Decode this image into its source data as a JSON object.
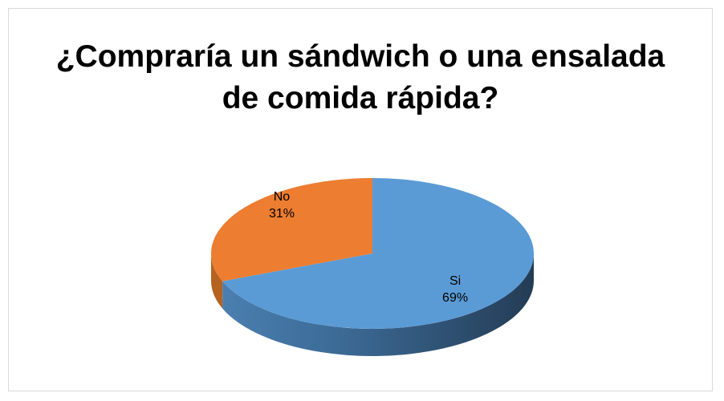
{
  "chart_data": {
    "type": "pie",
    "title_lines": [
      "¿Compraría un sándwich o una ensalada",
      "de comida rápida?"
    ],
    "categories": [
      "Si",
      "No"
    ],
    "values": [
      69,
      31
    ],
    "percent_labels": [
      "69%",
      "31%"
    ],
    "colors": [
      "#5B9BD5",
      "#ED7D31"
    ],
    "legend": "none",
    "three_d": true
  }
}
